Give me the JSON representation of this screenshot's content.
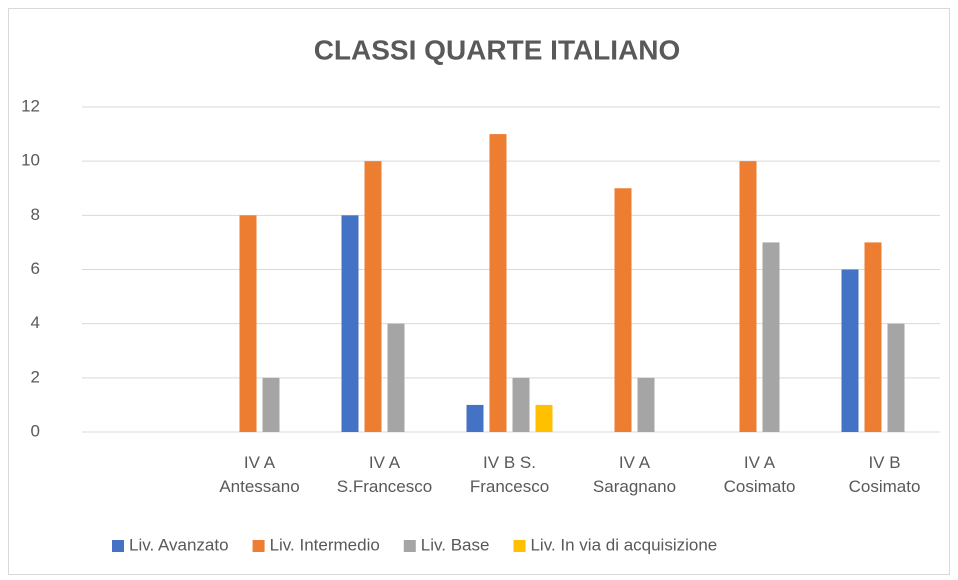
{
  "chart_data": {
    "type": "bar",
    "title": "CLASSI QUARTE ITALIANO",
    "categories": [
      null,
      "IV A\nAntessano",
      "IV A\nS.Francesco",
      "IV B S.\nFrancesco",
      "IV A\nSaragnano",
      "IV A\nCosimato",
      "IV B\nCosimato"
    ],
    "series": [
      {
        "name": "Liv. Avanzato",
        "color": "#4472c4",
        "values": [
          null,
          0,
          8,
          1,
          0,
          0,
          6
        ]
      },
      {
        "name": "Liv. Intermedio",
        "color": "#ed7d31",
        "values": [
          null,
          8,
          10,
          11,
          9,
          10,
          7
        ]
      },
      {
        "name": "Liv. Base",
        "color": "#a5a5a5",
        "values": [
          null,
          2,
          4,
          2,
          2,
          7,
          4
        ]
      },
      {
        "name": "Liv. In via di acquisizione",
        "color": "#ffc000",
        "values": [
          null,
          0,
          0,
          1,
          0,
          0,
          0
        ]
      }
    ],
    "ylim": [
      0,
      12
    ],
    "yticks": [
      0,
      2,
      4,
      6,
      8,
      10,
      12
    ],
    "grid": true,
    "legend": "bottom"
  }
}
